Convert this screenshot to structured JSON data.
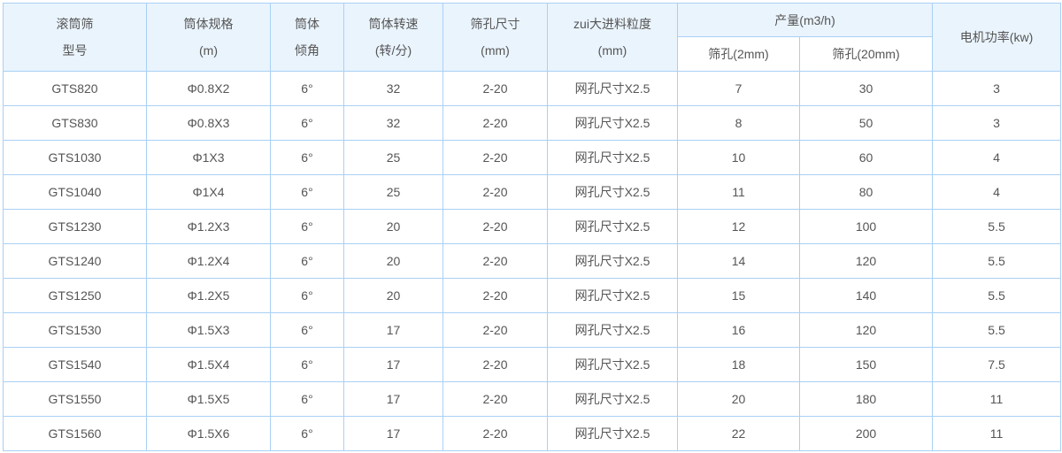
{
  "header": {
    "model": [
      "滚筒筛",
      "型号"
    ],
    "spec": [
      "筒体规格",
      "(m)"
    ],
    "angle": [
      "筒体",
      "倾角"
    ],
    "speed": [
      "筒体转速",
      "(转/分)"
    ],
    "mesh": [
      "筛孔尺寸",
      "(mm)"
    ],
    "feed": [
      "zui大进料粒度",
      "(mm)"
    ],
    "capacity": "产量(m3/h)",
    "capacity_sub": [
      "筛孔(2mm)",
      "筛孔(20mm)"
    ],
    "power": "电机功率(kw)"
  },
  "colors": {
    "header_bg": "#eaf4fd",
    "border": "#a9d0f5",
    "text": "#555555"
  },
  "rows": [
    [
      "GTS820",
      "Φ0.8X2",
      "6°",
      "32",
      "2-20",
      "网孔尺寸X2.5",
      "7",
      "30",
      "3"
    ],
    [
      "GTS830",
      "Φ0.8X3",
      "6°",
      "32",
      "2-20",
      "网孔尺寸X2.5",
      "8",
      "50",
      "3"
    ],
    [
      "GTS1030",
      "Φ1X3",
      "6°",
      "25",
      "2-20",
      "网孔尺寸X2.5",
      "10",
      "60",
      "4"
    ],
    [
      "GTS1040",
      "Φ1X4",
      "6°",
      "25",
      "2-20",
      "网孔尺寸X2.5",
      "11",
      "80",
      "4"
    ],
    [
      "GTS1230",
      "Φ1.2X3",
      "6°",
      "20",
      "2-20",
      "网孔尺寸X2.5",
      "12",
      "100",
      "5.5"
    ],
    [
      "GTS1240",
      "Φ1.2X4",
      "6°",
      "20",
      "2-20",
      "网孔尺寸X2.5",
      "14",
      "120",
      "5.5"
    ],
    [
      "GTS1250",
      "Φ1.2X5",
      "6°",
      "20",
      "2-20",
      "网孔尺寸X2.5",
      "15",
      "140",
      "5.5"
    ],
    [
      "GTS1530",
      "Φ1.5X3",
      "6°",
      "17",
      "2-20",
      "网孔尺寸X2.5",
      "16",
      "120",
      "5.5"
    ],
    [
      "GTS1540",
      "Φ1.5X4",
      "6°",
      "17",
      "2-20",
      "网孔尺寸X2.5",
      "18",
      "150",
      "7.5"
    ],
    [
      "GTS1550",
      "Φ1.5X5",
      "6°",
      "17",
      "2-20",
      "网孔尺寸X2.5",
      "20",
      "180",
      "11"
    ],
    [
      "GTS1560",
      "Φ1.5X6",
      "6°",
      "17",
      "2-20",
      "网孔尺寸X2.5",
      "22",
      "200",
      "11"
    ]
  ]
}
